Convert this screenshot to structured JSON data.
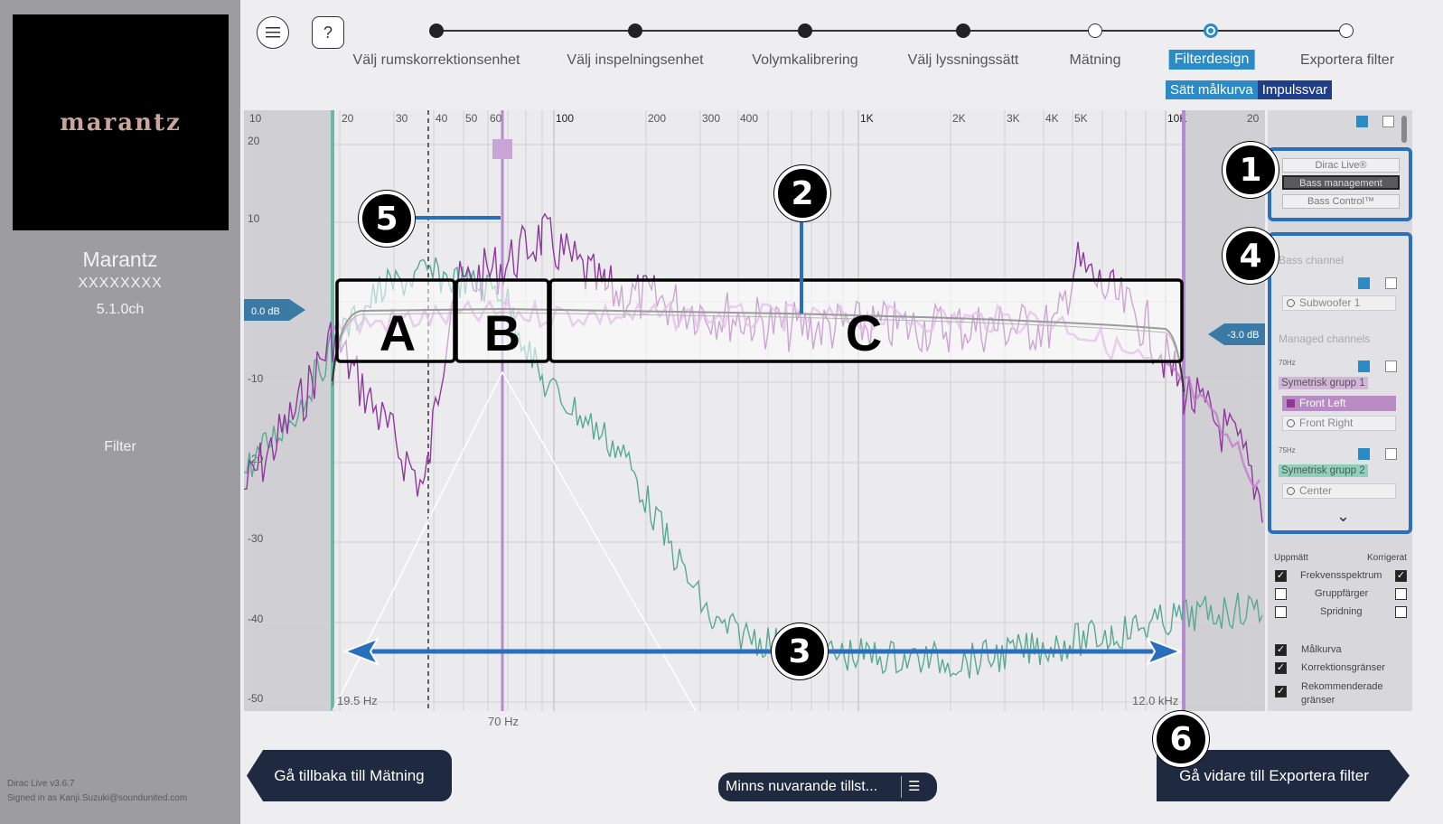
{
  "sidebar": {
    "logo": "marantz",
    "device_name": "Marantz",
    "device_model": "XXXXXXXX",
    "device_channels": "5.1.0ch",
    "section": "Filter",
    "version": "Dirac Live v3.6.7",
    "signed_in": "Signed in as Kanji.Suzuki@soundunited.com"
  },
  "nav": {
    "menu_icon": "hamburger-icon",
    "help_icon": "help-icon",
    "help_glyph": "?",
    "steps": [
      {
        "label": "Välj rumskorrektionsenhet",
        "state": "done"
      },
      {
        "label": "Välj inspelningsenhet",
        "state": "done"
      },
      {
        "label": "Volymkalibrering",
        "state": "done"
      },
      {
        "label": "Välj lyssningssätt",
        "state": "done"
      },
      {
        "label": "Mätning",
        "state": "open"
      },
      {
        "label": "Filterdesign",
        "state": "current"
      },
      {
        "label": "Exportera filter",
        "state": "open"
      }
    ],
    "subtabs": [
      "Sätt målkurva",
      "Impulssvar"
    ]
  },
  "chart": {
    "x_ticks": [
      "10",
      "20",
      "30",
      "40",
      "50",
      "60",
      "100",
      "200",
      "300",
      "400",
      "1K",
      "2K",
      "3K",
      "4K",
      "5K",
      "10K",
      "20"
    ],
    "y_ticks": [
      "20",
      "10",
      "-10",
      "-20",
      "-30",
      "-40",
      "-50"
    ],
    "left_gain": "0.0 dB",
    "right_gain": "-3.0 dB",
    "low_limit": "19.5 Hz",
    "high_limit": "12.0 kHz",
    "crossover": "70 Hz",
    "zones": [
      "A",
      "B",
      "C"
    ],
    "colors": {
      "measured": "#8e3a9c",
      "corrected": "#5aa893",
      "target": "#222222",
      "limit": "#6bb7a8",
      "crossover": "#b58bd0"
    }
  },
  "panel": {
    "modes": [
      "Dirac Live®",
      "Bass management",
      "Bass Control™"
    ],
    "selected_mode": "Bass management",
    "bass_channel_title": "Bass channel",
    "subwoofer": "Subwoofer 1",
    "managed_title": "Managed channels",
    "group1_hz": "70Hz",
    "group1": "Symetrisk grupp 1",
    "group1_channels": [
      "Front Left",
      "Front Right"
    ],
    "group2_hz": "75Hz",
    "group2": "Symetrisk grupp 2",
    "group2_channels": [
      "Center"
    ],
    "expand_icon": "chevron-down-icon",
    "col_measured": "Uppmätt",
    "col_corrected": "Korrigerat",
    "options": [
      {
        "label": "Frekvensspektrum",
        "measured": true,
        "corrected": true
      },
      {
        "label": "Gruppfärger",
        "measured": false,
        "corrected": false
      },
      {
        "label": "Spridning",
        "measured": false,
        "corrected": false
      }
    ],
    "toggles": [
      {
        "label": "Målkurva",
        "checked": true
      },
      {
        "label": "Korrektionsgränser",
        "checked": true
      },
      {
        "label": "Rekommenderade gränser",
        "checked": true
      }
    ]
  },
  "footer": {
    "back": "Gå tillbaka till Mätning",
    "remember": "Minns nuvarande tillst...",
    "remember_icon": "list-icon",
    "next": "Gå vidare till Exportera filter"
  },
  "markers": [
    "1",
    "2",
    "3",
    "4",
    "5",
    "6"
  ]
}
